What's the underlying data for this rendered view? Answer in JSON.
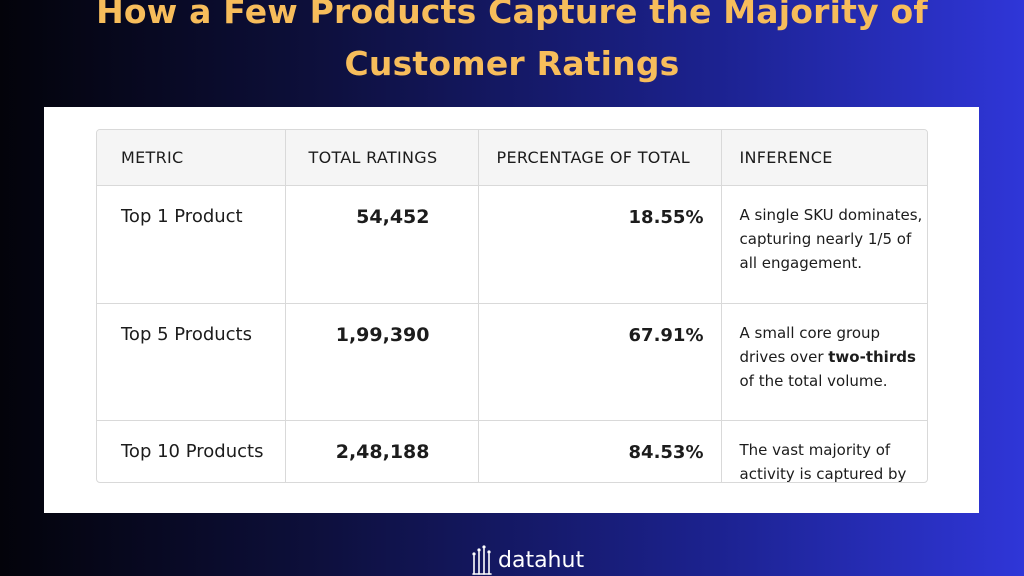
{
  "title": {
    "line1": "How a Few Products Capture the Majority of",
    "line2": "Customer Ratings"
  },
  "chart_data": {
    "type": "table",
    "columns": [
      "METRIC",
      "TOTAL RATINGS",
      "PERCENTAGE OF TOTAL",
      "INFERENCE"
    ],
    "rows": [
      {
        "metric": "Top 1 Product",
        "total_ratings": "54,452",
        "percentage": "18.55%",
        "inference": [
          "A single SKU dominates, capturing nearly 1/5 of all engagement."
        ]
      },
      {
        "metric": "Top 5 Products",
        "total_ratings": "1,99,390",
        "percentage": "67.91%",
        "inference": [
          "A small core group drives over ",
          "two-thirds",
          " of the total volume."
        ]
      },
      {
        "metric": "Top 10 Products",
        "total_ratings": "2,48,188",
        "percentage": "84.53%",
        "inference": [
          "The vast majority of activity is captured by just ten listings."
        ]
      }
    ]
  },
  "logo": {
    "text": "datahut",
    "icon": "datahut-logo-icon"
  },
  "colors": {
    "title": "#f7bd5b",
    "panel": "#ffffff",
    "header_bg": "#f5f5f5",
    "border": "#d9d9d9"
  }
}
